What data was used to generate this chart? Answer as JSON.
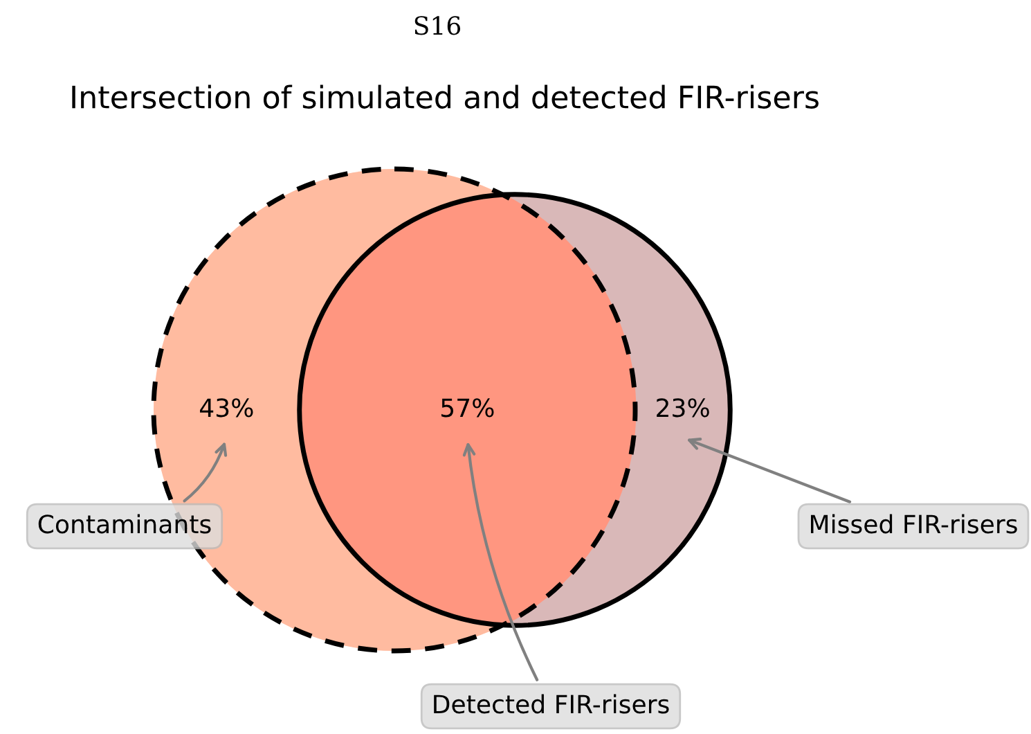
{
  "chart_data": {
    "type": "other",
    "title": "Intersection of simulated and detected FIR-risers",
    "categories": [
      null,
      null,
      null
    ],
    "values": [
      43,
      57,
      23
    ],
    "value_labels": [
      "43%",
      "57%",
      "23%"
    ],
    "colors": [
      "#ffbba0",
      "#ff9680",
      "#d9b8b8"
    ],
    "annotations": [
      "S16",
      "Contaminants",
      "Detected FIR-risers",
      "Missed FIR-risers"
    ]
  }
}
